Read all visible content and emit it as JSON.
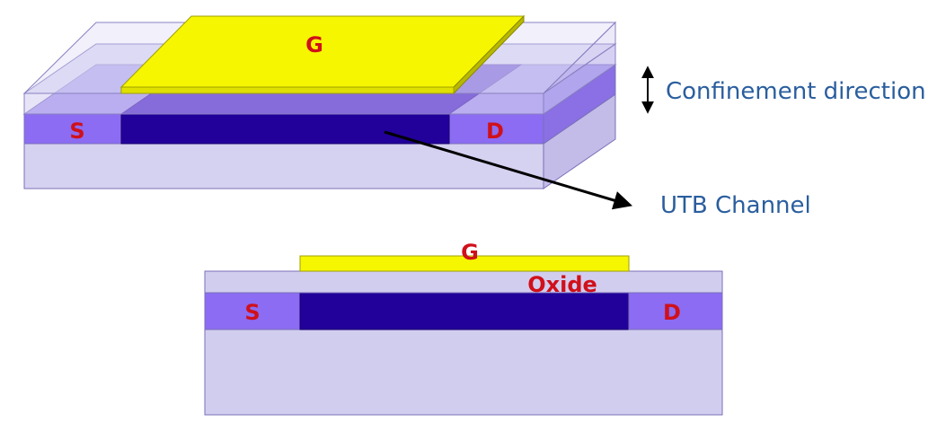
{
  "top_view": {
    "gate_label": "G",
    "source_label": "S",
    "drain_label": "D"
  },
  "annotations": {
    "confinement": "Confinement direction",
    "channel": "UTB Channel"
  },
  "cross_section": {
    "gate_label": "G",
    "oxide_label": "Oxide",
    "source_label": "S",
    "drain_label": "D"
  },
  "colors": {
    "gate": "#f6f600",
    "channel": "#22009a",
    "source_drain": "#8b6cf2",
    "substrate": "#d1cdef",
    "oxide": "#d1cdef",
    "label_red": "#d0101a",
    "label_blue": "#2a5e9e"
  }
}
